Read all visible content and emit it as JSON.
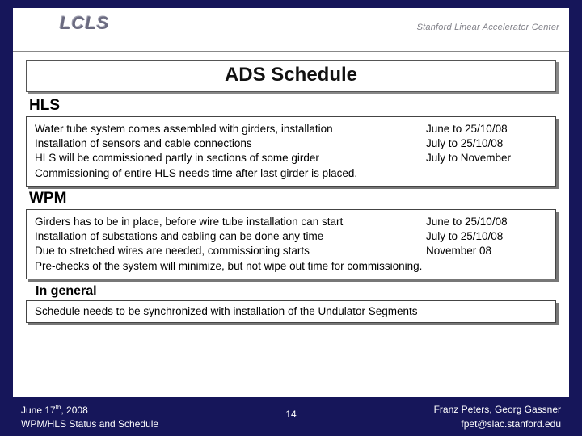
{
  "header": {
    "logo_text": "LCLS",
    "center_name": "Stanford Linear Accelerator Center"
  },
  "title": "ADS Schedule",
  "sections": [
    {
      "label": "HLS",
      "rows": [
        {
          "left": "Water tube system comes assembled with girders, installation",
          "right": "June to 25/10/08"
        },
        {
          "left": "Installation of sensors and cable connections",
          "right": "July to 25/10/08"
        },
        {
          "left": "HLS will be commissioned partly in sections of some girder",
          "right": "July to November"
        },
        {
          "left": "Commissioning of entire HLS needs time after last girder is placed.",
          "right": ""
        }
      ]
    },
    {
      "label": "WPM",
      "rows": [
        {
          "left": "Girders has to be in place, before wire tube installation can start",
          "right": "June to 25/10/08"
        },
        {
          "left": "Installation of substations and cabling can be done any time",
          "right": "July to 25/10/08"
        },
        {
          "left": "Due to stretched wires are needed, commissioning starts",
          "right": "November 08"
        },
        {
          "left": "Pre-checks of the system will minimize, but not wipe out time for commissioning.",
          "right": ""
        }
      ]
    }
  ],
  "general": {
    "label": "In general",
    "text": "Schedule needs to be synchronized with installation of the Undulator Segments"
  },
  "footer": {
    "date_prefix": "June 17",
    "date_suffix": ", 2008",
    "ordinal": "th",
    "subtitle": "WPM/HLS Status and Schedule",
    "page": "14",
    "authors": "Franz Peters, Georg Gassner",
    "email": "fpet@slac.stanford.edu"
  },
  "colors": {
    "slide_bg": "#16165a",
    "box_border": "#444444",
    "box_shadow": "#777777",
    "text": "#000000",
    "footer_text": "#ffffff"
  }
}
